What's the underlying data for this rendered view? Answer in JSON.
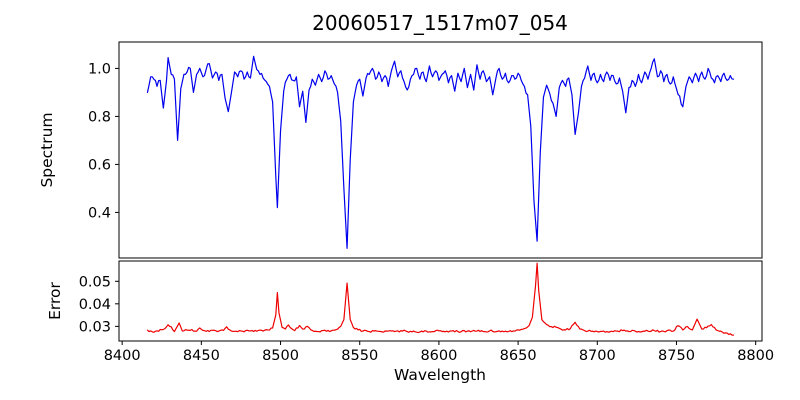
{
  "chart_data": {
    "type": "line",
    "title": "20060517_1517m07_054",
    "xlabel": "Wavelength",
    "xlim": [
      8398,
      8804
    ],
    "xticks": [
      8400,
      8450,
      8500,
      8550,
      8600,
      8650,
      8700,
      8750,
      8800
    ],
    "grid": false,
    "legend": "none",
    "subplots": [
      {
        "name": "spectrum",
        "ylabel": "Spectrum",
        "color": "#0000ee",
        "ylim": [
          0.21,
          1.11
        ],
        "yticks": [
          0.4,
          0.6,
          0.8,
          1.0
        ],
        "ytick_decimals": 1,
        "noise_amp": 0.012,
        "points": [
          [
            8416,
            0.9
          ],
          [
            8418,
            0.965
          ],
          [
            8420,
            0.955
          ],
          [
            8422,
            0.925
          ],
          [
            8424,
            0.95
          ],
          [
            8426,
            0.835
          ],
          [
            8428,
            0.95
          ],
          [
            8429,
            1.045
          ],
          [
            8431,
            0.975
          ],
          [
            8433,
            0.955
          ],
          [
            8435,
            0.7
          ],
          [
            8437,
            0.915
          ],
          [
            8439,
            0.975
          ],
          [
            8441,
            0.985
          ],
          [
            8443,
            1.0
          ],
          [
            8445,
            0.9
          ],
          [
            8447,
            0.975
          ],
          [
            8449,
            1.0
          ],
          [
            8451,
            0.965
          ],
          [
            8453,
            0.995
          ],
          [
            8455,
            1.02
          ],
          [
            8457,
            0.96
          ],
          [
            8459,
            0.985
          ],
          [
            8461,
            0.95
          ],
          [
            8463,
            0.975
          ],
          [
            8465,
            0.875
          ],
          [
            8467,
            0.82
          ],
          [
            8469,
            0.9
          ],
          [
            8471,
            0.985
          ],
          [
            8473,
            0.965
          ],
          [
            8475,
            0.99
          ],
          [
            8477,
            0.955
          ],
          [
            8479,
            0.985
          ],
          [
            8481,
            0.96
          ],
          [
            8483,
            1.05
          ],
          [
            8485,
            0.995
          ],
          [
            8487,
            0.975
          ],
          [
            8489,
            0.96
          ],
          [
            8491,
            0.945
          ],
          [
            8493,
            0.925
          ],
          [
            8495,
            0.86
          ],
          [
            8497,
            0.55
          ],
          [
            8498,
            0.42
          ],
          [
            8499,
            0.58
          ],
          [
            8500,
            0.74
          ],
          [
            8502,
            0.905
          ],
          [
            8504,
            0.955
          ],
          [
            8506,
            0.975
          ],
          [
            8508,
            0.95
          ],
          [
            8510,
            0.965
          ],
          [
            8512,
            0.84
          ],
          [
            8514,
            0.905
          ],
          [
            8516,
            0.775
          ],
          [
            8518,
            0.91
          ],
          [
            8520,
            0.955
          ],
          [
            8522,
            0.93
          ],
          [
            8524,
            0.975
          ],
          [
            8526,
            0.945
          ],
          [
            8528,
            0.99
          ],
          [
            8530,
            0.955
          ],
          [
            8532,
            0.97
          ],
          [
            8534,
            0.935
          ],
          [
            8536,
            0.9
          ],
          [
            8538,
            0.78
          ],
          [
            8540,
            0.5
          ],
          [
            8542,
            0.25
          ],
          [
            8544,
            0.62
          ],
          [
            8546,
            0.86
          ],
          [
            8548,
            0.93
          ],
          [
            8550,
            0.955
          ],
          [
            8552,
            0.885
          ],
          [
            8554,
            0.96
          ],
          [
            8556,
            0.975
          ],
          [
            8558,
            1.0
          ],
          [
            8560,
            0.955
          ],
          [
            8562,
            0.985
          ],
          [
            8564,
            0.945
          ],
          [
            8566,
            0.97
          ],
          [
            8568,
            0.925
          ],
          [
            8570,
            0.99
          ],
          [
            8572,
            1.03
          ],
          [
            8574,
            0.965
          ],
          [
            8576,
            0.99
          ],
          [
            8578,
            0.945
          ],
          [
            8580,
            0.91
          ],
          [
            8582,
            0.955
          ],
          [
            8584,
            0.975
          ],
          [
            8586,
            1.0
          ],
          [
            8588,
            0.955
          ],
          [
            8590,
            0.985
          ],
          [
            8592,
            0.945
          ],
          [
            8594,
            1.01
          ],
          [
            8596,
            0.965
          ],
          [
            8598,
            0.99
          ],
          [
            8600,
            0.95
          ],
          [
            8602,
            0.975
          ],
          [
            8604,
            0.99
          ],
          [
            8606,
            0.94
          ],
          [
            8608,
            0.97
          ],
          [
            8610,
            0.905
          ],
          [
            8612,
            0.98
          ],
          [
            8614,
            0.945
          ],
          [
            8616,
            1.0
          ],
          [
            8618,
            0.92
          ],
          [
            8620,
            0.975
          ],
          [
            8622,
            0.91
          ],
          [
            8624,
            1.015
          ],
          [
            8626,
            0.955
          ],
          [
            8628,
            0.99
          ],
          [
            8630,
            0.945
          ],
          [
            8632,
            0.965
          ],
          [
            8634,
            0.89
          ],
          [
            8636,
            0.96
          ],
          [
            8638,
            1.0
          ],
          [
            8640,
            0.955
          ],
          [
            8642,
            0.98
          ],
          [
            8644,
            0.94
          ],
          [
            8646,
            0.97
          ],
          [
            8648,
            0.955
          ],
          [
            8650,
            0.98
          ],
          [
            8652,
            0.95
          ],
          [
            8654,
            0.925
          ],
          [
            8656,
            0.89
          ],
          [
            8658,
            0.76
          ],
          [
            8660,
            0.45
          ],
          [
            8662,
            0.28
          ],
          [
            8664,
            0.65
          ],
          [
            8666,
            0.88
          ],
          [
            8668,
            0.93
          ],
          [
            8670,
            0.895
          ],
          [
            8672,
            0.855
          ],
          [
            8674,
            0.8
          ],
          [
            8676,
            0.92
          ],
          [
            8678,
            0.95
          ],
          [
            8680,
            0.925
          ],
          [
            8682,
            0.96
          ],
          [
            8684,
            0.89
          ],
          [
            8686,
            0.725
          ],
          [
            8688,
            0.81
          ],
          [
            8690,
            0.925
          ],
          [
            8692,
            0.96
          ],
          [
            8694,
            1.01
          ],
          [
            8696,
            0.95
          ],
          [
            8698,
            0.98
          ],
          [
            8700,
            0.94
          ],
          [
            8702,
            0.975
          ],
          [
            8704,
            0.945
          ],
          [
            8706,
            0.985
          ],
          [
            8708,
            0.95
          ],
          [
            8710,
            0.97
          ],
          [
            8712,
            0.935
          ],
          [
            8714,
            0.96
          ],
          [
            8716,
            0.905
          ],
          [
            8718,
            0.815
          ],
          [
            8720,
            0.92
          ],
          [
            8722,
            0.95
          ],
          [
            8724,
            0.925
          ],
          [
            8726,
            0.975
          ],
          [
            8728,
            0.94
          ],
          [
            8730,
            0.985
          ],
          [
            8732,
            0.955
          ],
          [
            8734,
            1.0
          ],
          [
            8736,
            1.04
          ],
          [
            8738,
            0.965
          ],
          [
            8740,
            0.99
          ],
          [
            8742,
            0.945
          ],
          [
            8744,
            0.975
          ],
          [
            8746,
            0.935
          ],
          [
            8748,
            0.965
          ],
          [
            8750,
            0.915
          ],
          [
            8752,
            0.885
          ],
          [
            8754,
            0.84
          ],
          [
            8756,
            0.925
          ],
          [
            8758,
            0.965
          ],
          [
            8760,
            0.94
          ],
          [
            8762,
            0.98
          ],
          [
            8764,
            0.945
          ],
          [
            8766,
            0.985
          ],
          [
            8768,
            0.955
          ],
          [
            8770,
            1.0
          ],
          [
            8772,
            0.96
          ],
          [
            8774,
            0.94
          ],
          [
            8776,
            0.97
          ],
          [
            8778,
            0.945
          ],
          [
            8780,
            0.98
          ],
          [
            8782,
            0.95
          ],
          [
            8784,
            0.97
          ],
          [
            8786,
            0.955
          ]
        ]
      },
      {
        "name": "error",
        "ylabel": "Error",
        "color": "#ee0000",
        "ylim": [
          0.0235,
          0.059
        ],
        "yticks": [
          0.03,
          0.04,
          0.05
        ],
        "ytick_decimals": 2,
        "noise_amp": 0.00045,
        "points": [
          [
            8416,
            0.0283
          ],
          [
            8419,
            0.0276
          ],
          [
            8422,
            0.028
          ],
          [
            8425,
            0.0285
          ],
          [
            8427,
            0.029
          ],
          [
            8429,
            0.0307
          ],
          [
            8431,
            0.0298
          ],
          [
            8433,
            0.0277
          ],
          [
            8436,
            0.0315
          ],
          [
            8438,
            0.0279
          ],
          [
            8441,
            0.0283
          ],
          [
            8444,
            0.0286
          ],
          [
            8447,
            0.0278
          ],
          [
            8449,
            0.0293
          ],
          [
            8452,
            0.0281
          ],
          [
            8455,
            0.0277
          ],
          [
            8458,
            0.0283
          ],
          [
            8461,
            0.0279
          ],
          [
            8464,
            0.0282
          ],
          [
            8466,
            0.0298
          ],
          [
            8468,
            0.0284
          ],
          [
            8471,
            0.0278
          ],
          [
            8474,
            0.0281
          ],
          [
            8477,
            0.0276
          ],
          [
            8480,
            0.028
          ],
          [
            8483,
            0.0277
          ],
          [
            8486,
            0.0282
          ],
          [
            8489,
            0.0279
          ],
          [
            8492,
            0.0284
          ],
          [
            8495,
            0.0293
          ],
          [
            8497,
            0.035
          ],
          [
            8498,
            0.045
          ],
          [
            8499,
            0.036
          ],
          [
            8501,
            0.0295
          ],
          [
            8503,
            0.0288
          ],
          [
            8505,
            0.0306
          ],
          [
            8507,
            0.029
          ],
          [
            8509,
            0.0281
          ],
          [
            8512,
            0.0304
          ],
          [
            8514,
            0.0288
          ],
          [
            8517,
            0.03
          ],
          [
            8520,
            0.0282
          ],
          [
            8523,
            0.0277
          ],
          [
            8526,
            0.0281
          ],
          [
            8529,
            0.0278
          ],
          [
            8532,
            0.028
          ],
          [
            8535,
            0.0285
          ],
          [
            8538,
            0.03
          ],
          [
            8540,
            0.033
          ],
          [
            8542,
            0.0492
          ],
          [
            8544,
            0.033
          ],
          [
            8546,
            0.0295
          ],
          [
            8549,
            0.0284
          ],
          [
            8552,
            0.0279
          ],
          [
            8556,
            0.0277
          ],
          [
            8560,
            0.0281
          ],
          [
            8564,
            0.0276
          ],
          [
            8568,
            0.0279
          ],
          [
            8572,
            0.0277
          ],
          [
            8576,
            0.0281
          ],
          [
            8580,
            0.0277
          ],
          [
            8584,
            0.0279
          ],
          [
            8588,
            0.0275
          ],
          [
            8592,
            0.0279
          ],
          [
            8596,
            0.0277
          ],
          [
            8600,
            0.028
          ],
          [
            8604,
            0.0276
          ],
          [
            8608,
            0.0279
          ],
          [
            8612,
            0.0277
          ],
          [
            8616,
            0.0281
          ],
          [
            8620,
            0.0276
          ],
          [
            8624,
            0.0279
          ],
          [
            8628,
            0.0277
          ],
          [
            8632,
            0.028
          ],
          [
            8636,
            0.0276
          ],
          [
            8640,
            0.0279
          ],
          [
            8644,
            0.0277
          ],
          [
            8648,
            0.0279
          ],
          [
            8651,
            0.0283
          ],
          [
            8654,
            0.029
          ],
          [
            8657,
            0.0304
          ],
          [
            8659,
            0.034
          ],
          [
            8661,
            0.048
          ],
          [
            8662,
            0.058
          ],
          [
            8663,
            0.046
          ],
          [
            8665,
            0.033
          ],
          [
            8668,
            0.0308
          ],
          [
            8671,
            0.0299
          ],
          [
            8674,
            0.0296
          ],
          [
            8677,
            0.0288
          ],
          [
            8680,
            0.0284
          ],
          [
            8683,
            0.029
          ],
          [
            8686,
            0.0318
          ],
          [
            8689,
            0.0288
          ],
          [
            8692,
            0.0281
          ],
          [
            8696,
            0.0278
          ],
          [
            8700,
            0.0277
          ],
          [
            8704,
            0.0279
          ],
          [
            8708,
            0.0276
          ],
          [
            8712,
            0.0279
          ],
          [
            8716,
            0.0281
          ],
          [
            8720,
            0.0277
          ],
          [
            8724,
            0.0279
          ],
          [
            8728,
            0.0276
          ],
          [
            8732,
            0.0279
          ],
          [
            8736,
            0.0281
          ],
          [
            8740,
            0.0277
          ],
          [
            8744,
            0.0281
          ],
          [
            8748,
            0.0279
          ],
          [
            8751,
            0.0303
          ],
          [
            8754,
            0.0284
          ],
          [
            8757,
            0.0299
          ],
          [
            8760,
            0.0284
          ],
          [
            8763,
            0.0332
          ],
          [
            8766,
            0.0288
          ],
          [
            8769,
            0.0294
          ],
          [
            8772,
            0.0308
          ],
          [
            8775,
            0.0284
          ],
          [
            8778,
            0.0279
          ],
          [
            8781,
            0.0271
          ],
          [
            8784,
            0.0267
          ],
          [
            8786,
            0.0261
          ]
        ]
      }
    ]
  }
}
